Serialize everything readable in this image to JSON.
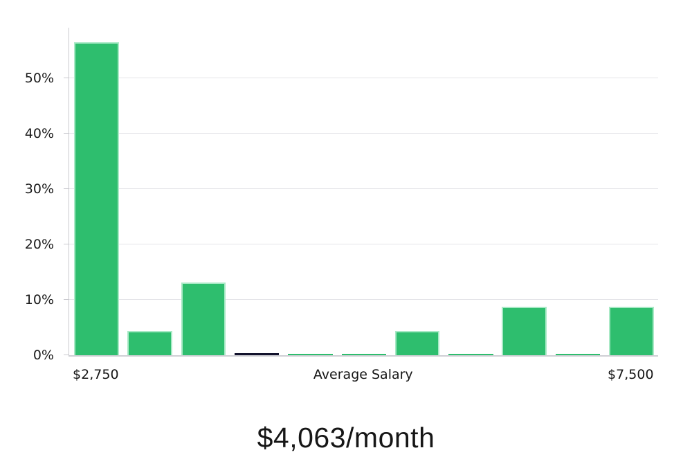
{
  "colors": {
    "bar_green": "#2ebe6e",
    "bar_green_border": "#a9e9c6",
    "bar_dark": "#13132d",
    "gridline": "#e4e4e8",
    "axis": "#c9c9ce",
    "label_text": "#1a1a1a"
  },
  "chart_data": {
    "type": "bar",
    "title": "",
    "xlabel": "Average Salary",
    "ylabel": "",
    "grid": "horizontal",
    "legend": "none",
    "ylim": [
      0,
      59.1
    ],
    "yticks": [
      {
        "value": 0,
        "label": "0%"
      },
      {
        "value": 10,
        "label": "10%"
      },
      {
        "value": 20,
        "label": "20%"
      },
      {
        "value": 30,
        "label": "30%"
      },
      {
        "value": 40,
        "label": "40%"
      },
      {
        "value": 50,
        "label": "50%"
      }
    ],
    "bars": [
      {
        "index": 0,
        "value": 56.5,
        "color": "green"
      },
      {
        "index": 1,
        "value": 4.4,
        "color": "green"
      },
      {
        "index": 2,
        "value": 13.1,
        "color": "green"
      },
      {
        "index": 3,
        "value": 0.4,
        "color": "dark"
      },
      {
        "index": 4,
        "value": 0.3,
        "color": "green"
      },
      {
        "index": 5,
        "value": 0.3,
        "color": "green"
      },
      {
        "index": 6,
        "value": 4.4,
        "color": "green"
      },
      {
        "index": 7,
        "value": 0.3,
        "color": "green"
      },
      {
        "index": 8,
        "value": 8.8,
        "color": "green"
      },
      {
        "index": 9,
        "value": 0.3,
        "color": "green"
      },
      {
        "index": 10,
        "value": 8.8,
        "color": "green"
      }
    ],
    "x_axis_labels": [
      {
        "text": "$2,750",
        "bar_index": 0
      },
      {
        "text": "Average Salary",
        "bar_index": 5
      },
      {
        "text": "$7,500",
        "bar_index": 10
      }
    ],
    "caption": "$4,063/month"
  }
}
